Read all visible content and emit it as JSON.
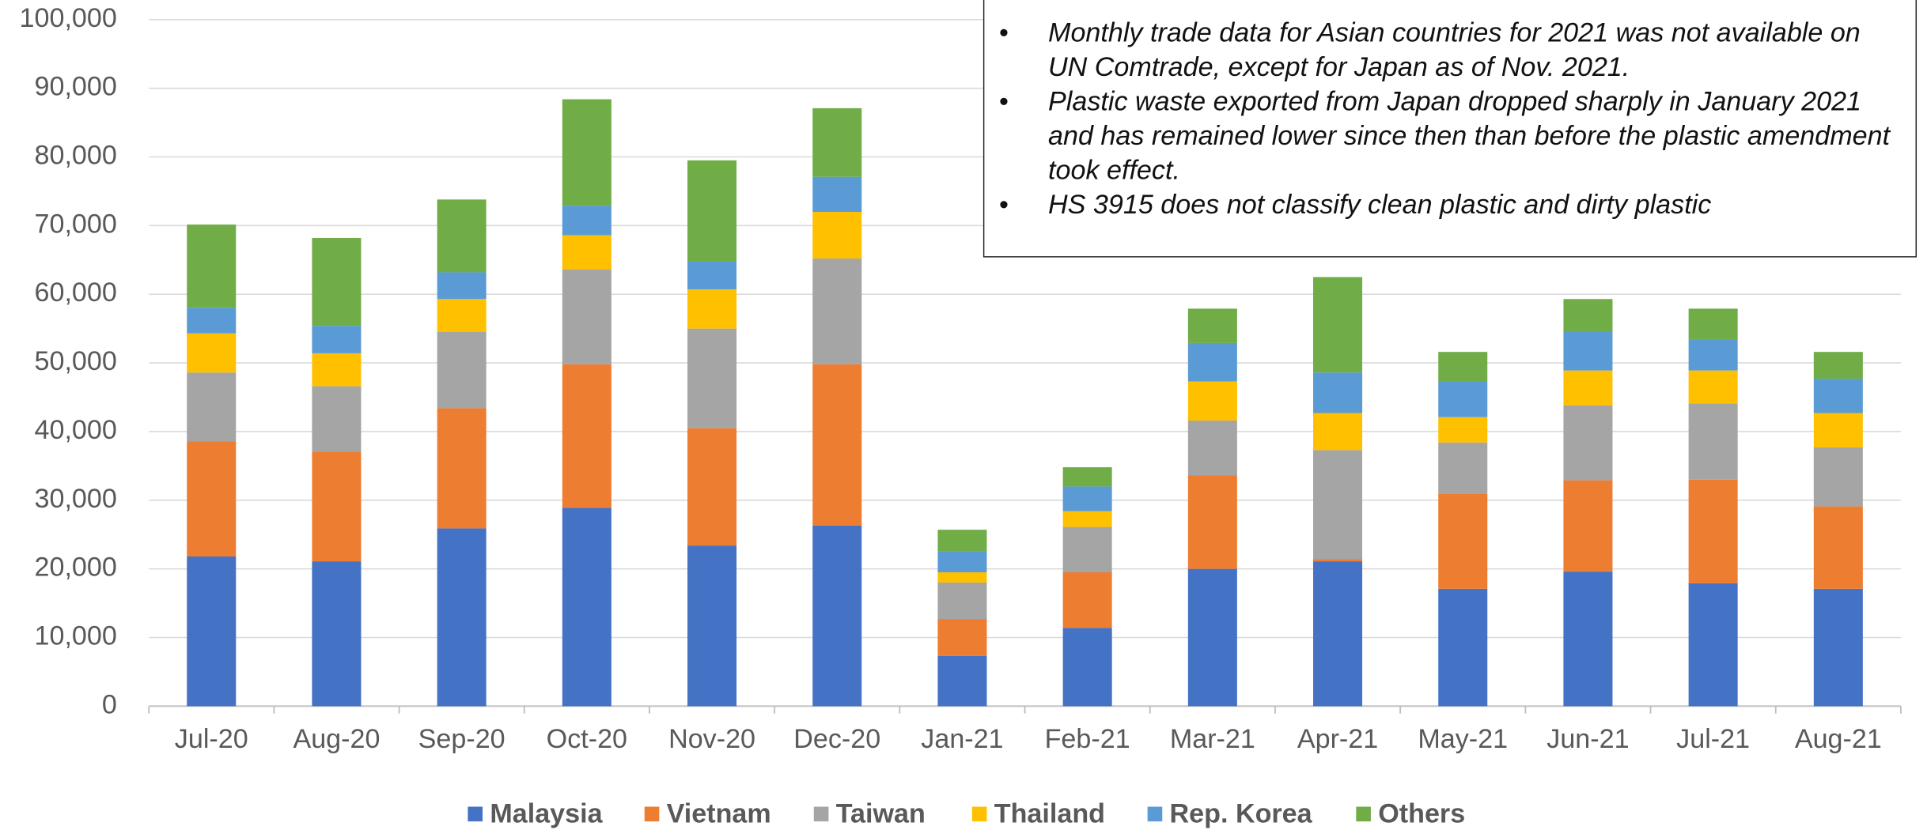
{
  "chart_data": {
    "type": "bar",
    "stacked": true,
    "categories": [
      "Jul-20",
      "Aug-20",
      "Sep-20",
      "Oct-20",
      "Nov-20",
      "Dec-20",
      "Jan-21",
      "Feb-21",
      "Mar-21",
      "Apr-21",
      "May-21",
      "Jun-21",
      "Jul-21",
      "Aug-21"
    ],
    "series": [
      {
        "name": "Malaysia",
        "color": "#4472c4",
        "values": [
          21800,
          21100,
          25900,
          28900,
          23400,
          26300,
          7300,
          11400,
          20000,
          21100,
          17100,
          19600,
          17900,
          17100
        ]
      },
      {
        "name": "Vietnam",
        "color": "#ed7d31",
        "values": [
          16800,
          16000,
          17500,
          20900,
          17100,
          23500,
          5400,
          8100,
          13600,
          300,
          13800,
          13300,
          15100,
          12000
        ]
      },
      {
        "name": "Taiwan",
        "color": "#a5a5a5",
        "values": [
          10000,
          9500,
          11100,
          13800,
          14500,
          15400,
          5300,
          6600,
          8000,
          15900,
          7500,
          10900,
          11100,
          8600
        ]
      },
      {
        "name": "Thailand",
        "color": "#ffc000",
        "values": [
          5700,
          4800,
          4800,
          5000,
          5700,
          6800,
          1500,
          2300,
          5700,
          5400,
          3700,
          5100,
          4800,
          5000
        ]
      },
      {
        "name": "Rep. Korea",
        "color": "#5b9bd5",
        "values": [
          3750,
          4000,
          3900,
          4300,
          4100,
          5100,
          3000,
          3600,
          5600,
          5900,
          5200,
          5600,
          4500,
          5000
        ]
      },
      {
        "name": "Others",
        "color": "#70ad47",
        "values": [
          12100,
          12800,
          10600,
          15500,
          14700,
          10000,
          3200,
          2800,
          5000,
          13900,
          4300,
          4800,
          4500,
          3900
        ]
      }
    ],
    "ylim": [
      0,
      100000
    ],
    "yticks": [
      0,
      {
        "value": 10000,
        "label": "10,000"
      },
      {
        "value": 20000,
        "label": "20,000"
      },
      {
        "value": 30000,
        "label": "30,000"
      },
      {
        "value": 40000,
        "label": "40,000"
      },
      {
        "value": 50000,
        "label": "50,000"
      },
      {
        "value": 60000,
        "label": "60,000"
      },
      {
        "value": 70000,
        "label": "70,000"
      },
      {
        "value": 80000,
        "label": "80,000"
      },
      {
        "value": 90000,
        "label": "90,000"
      },
      {
        "value": 100000,
        "label": "100,000"
      }
    ],
    "grid": true,
    "legend": "bottom",
    "annotations": [
      "Monthly trade data for Asian countries for 2021 was not available on UN Comtrade, except for Japan as of Nov. 2021.",
      "Plastic waste exported from Japan dropped sharply in January 2021 and has remained lower since then than before the plastic amendment took effect.",
      "HS 3915 does not classify clean plastic and dirty plastic"
    ]
  }
}
